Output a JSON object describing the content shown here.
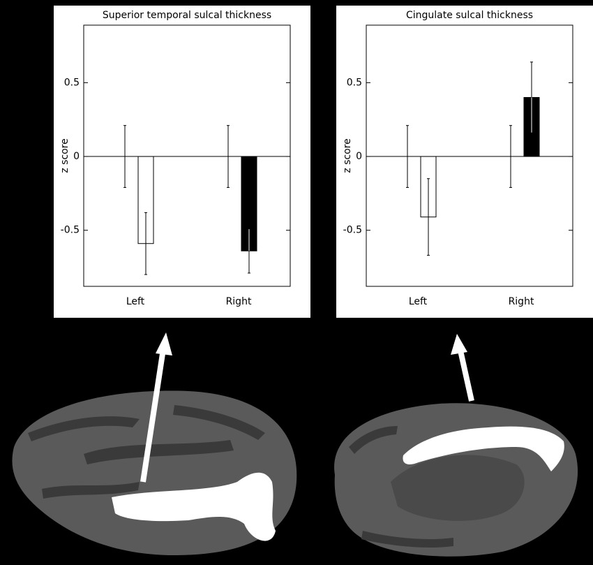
{
  "chart_data": [
    {
      "type": "bar",
      "title": "Superior temporal sulcal thickness",
      "ylabel": "z score",
      "categories": [
        "Left",
        "Right"
      ],
      "series": [
        {
          "values": [
            0,
            0
          ],
          "errors": [
            0.21,
            0.21
          ],
          "colors": [
            "#ffffff",
            "#ffffff"
          ]
        },
        {
          "values": [
            -0.59,
            -0.64
          ],
          "errors": [
            0.21,
            0.15
          ],
          "colors": [
            "#ffffff",
            "#000000"
          ]
        }
      ],
      "ylim": [
        -0.88,
        0.89
      ],
      "yticks": [
        -0.5,
        0,
        0.5
      ]
    },
    {
      "type": "bar",
      "title": "Cingulate sulcal thickness",
      "ylabel": "z score",
      "categories": [
        "Left",
        "Right"
      ],
      "series": [
        {
          "values": [
            0,
            0
          ],
          "errors": [
            0.21,
            0.21
          ],
          "colors": [
            "#ffffff",
            "#ffffff"
          ]
        },
        {
          "values": [
            -0.41,
            0.4
          ],
          "errors": [
            0.26,
            0.24
          ],
          "colors": [
            "#ffffff",
            "#000000"
          ]
        }
      ],
      "ylim": [
        -0.88,
        0.89
      ],
      "yticks": [
        -0.5,
        0,
        0.5
      ]
    }
  ]
}
